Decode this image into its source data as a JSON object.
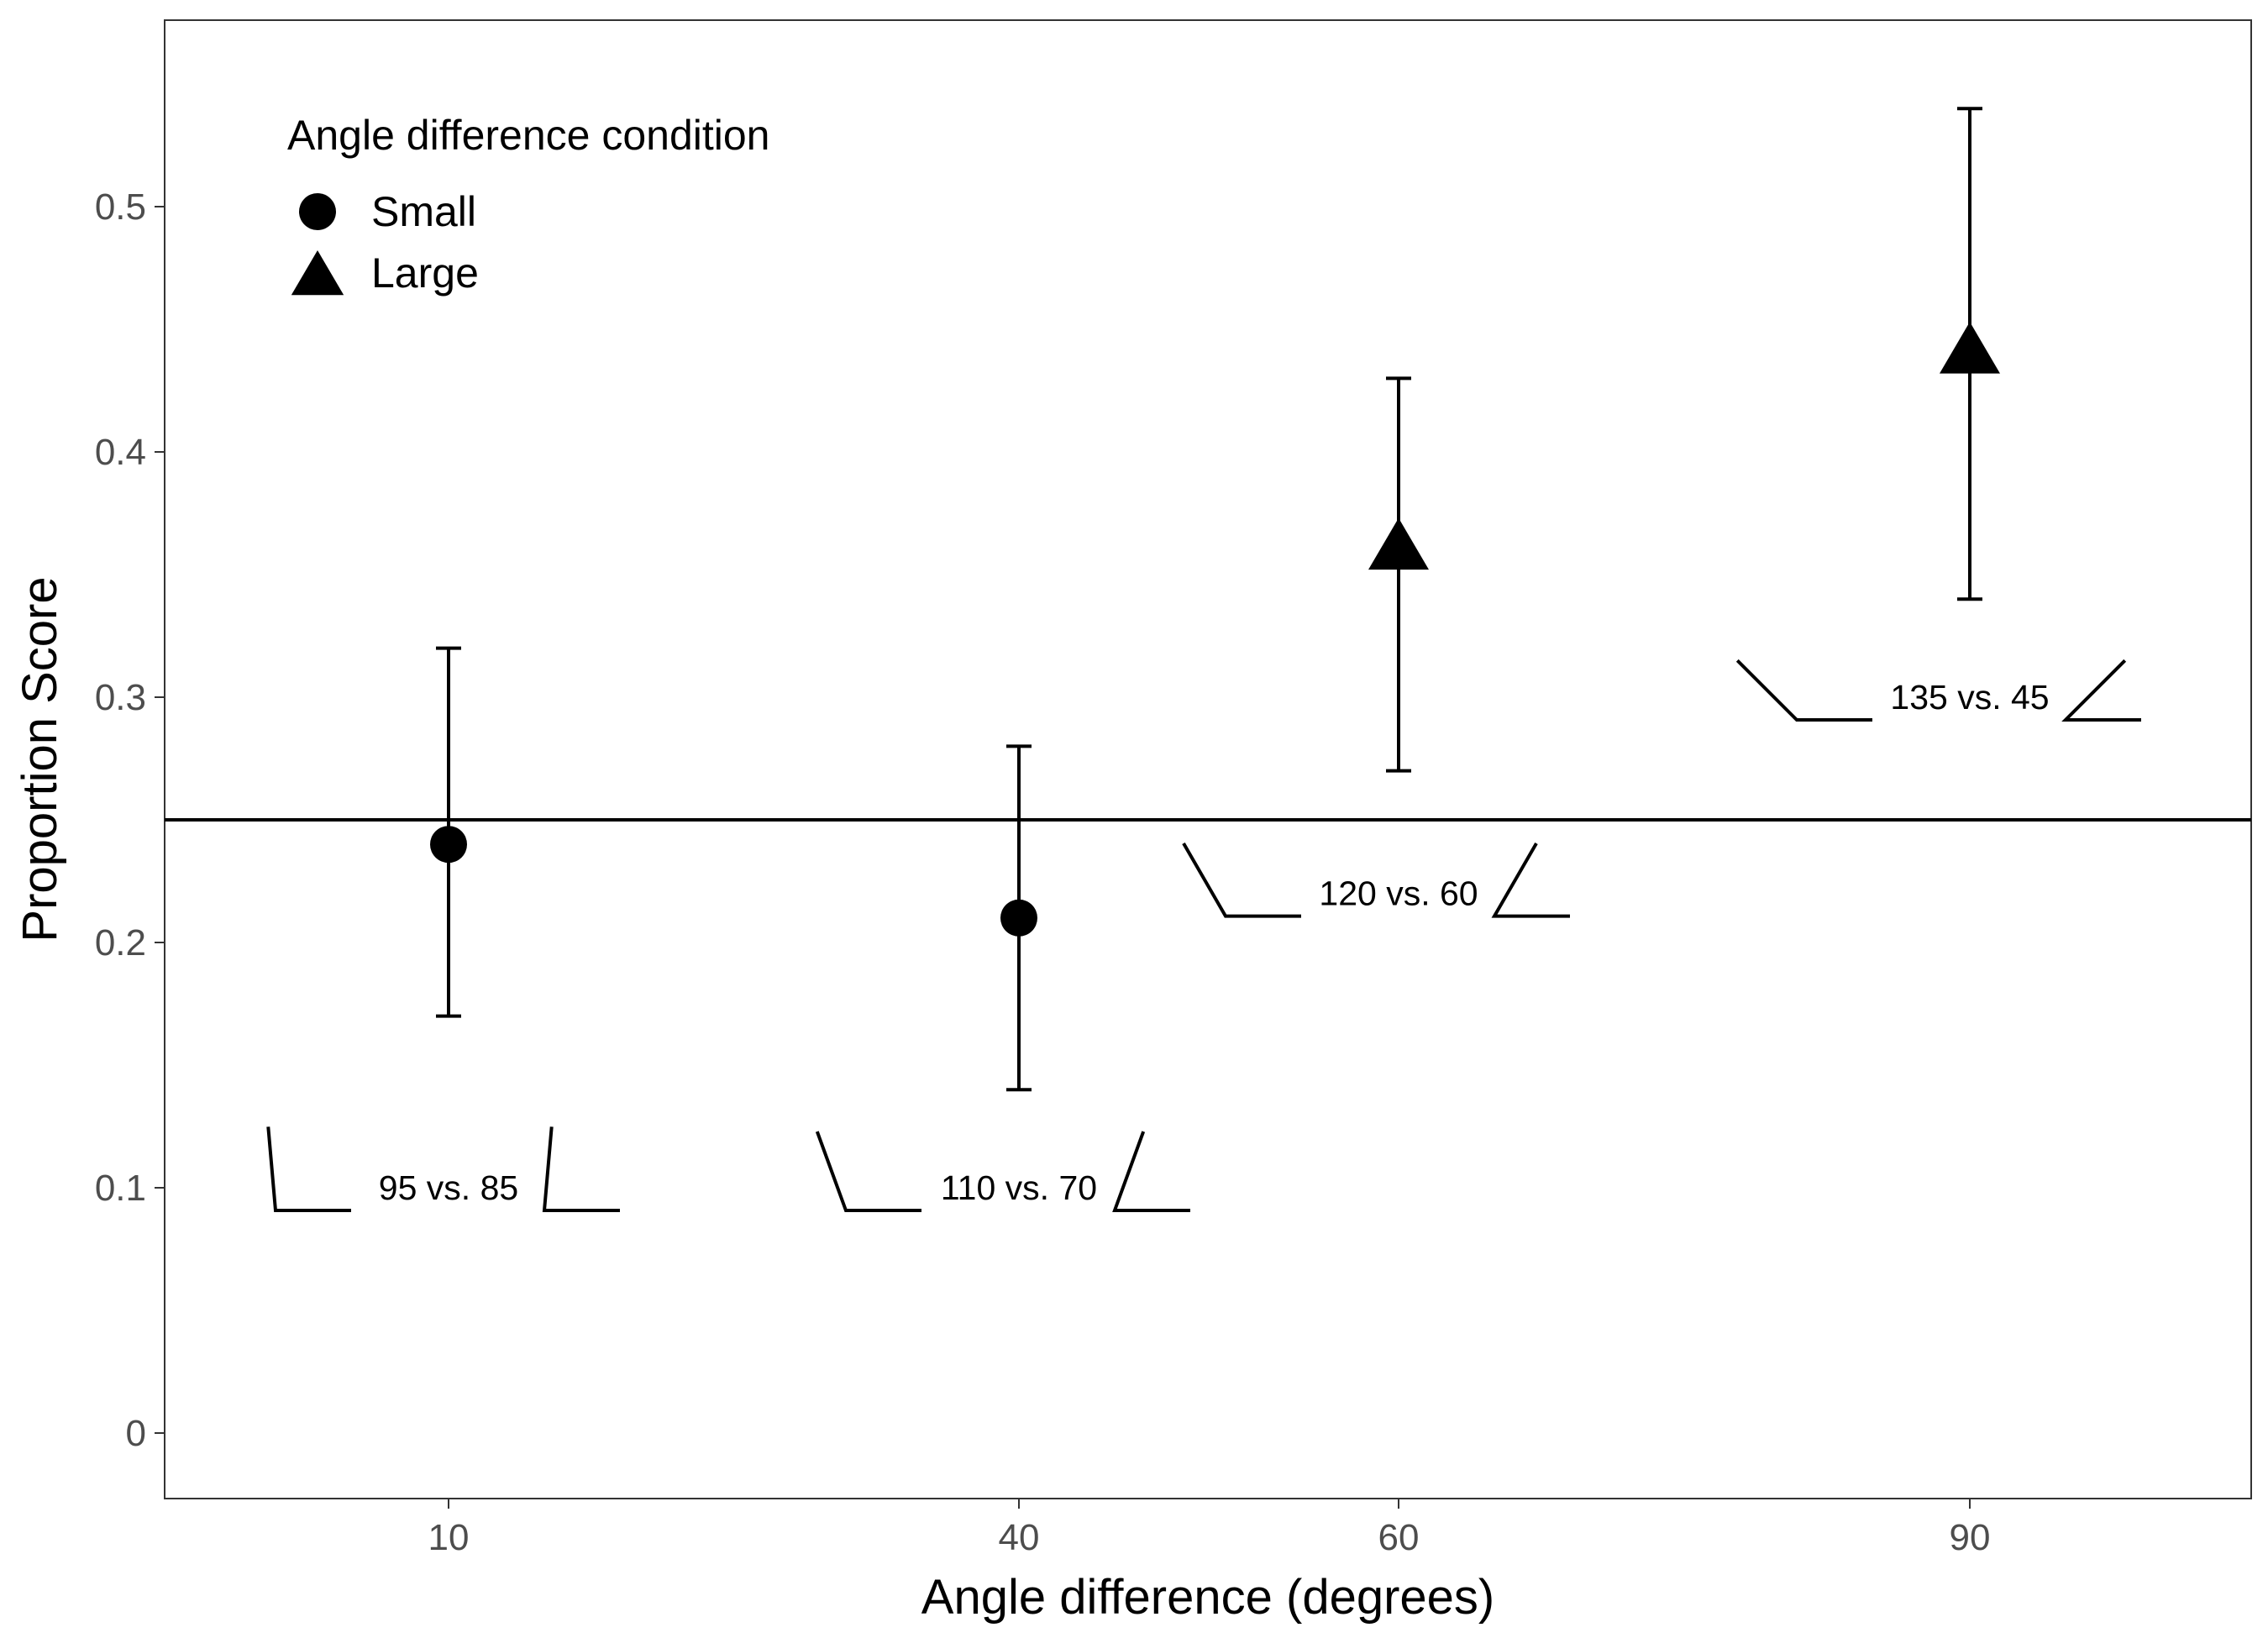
{
  "chart_data": {
    "type": "scatter",
    "title": "",
    "xlabel": "Angle difference (degrees)",
    "ylabel": "Proportion Score",
    "categories": [
      "10",
      "40",
      "60",
      "90"
    ],
    "yticks": [
      "0",
      "0.1",
      "0.2",
      "0.3",
      "0.4",
      "0.5"
    ],
    "ylim": [
      -0.027,
      0.58
    ],
    "grid": false,
    "reference_line": 0.25,
    "legend": {
      "title": "Angle difference condition",
      "placement": "top-left",
      "entries": [
        {
          "label": "Small",
          "shape": "circle"
        },
        {
          "label": "Large",
          "shape": "triangle"
        }
      ]
    },
    "series": [
      {
        "name": "Small",
        "shape": "circle",
        "x": [
          "10",
          "40"
        ],
        "y": [
          0.24,
          0.21
        ],
        "ymin": [
          0.17,
          0.14
        ],
        "ymax": [
          0.32,
          0.28
        ]
      },
      {
        "name": "Large",
        "shape": "triangle",
        "x": [
          "60",
          "90"
        ],
        "y": [
          0.36,
          0.44
        ],
        "ymin": [
          0.27,
          0.34
        ],
        "ymax": [
          0.43,
          0.54
        ]
      }
    ],
    "annotations": [
      {
        "text": "95 vs. 85",
        "category": "10",
        "y": 0.1,
        "left_angle": 95,
        "right_angle": 85
      },
      {
        "text": "110 vs. 70",
        "category": "40",
        "y": 0.1,
        "left_angle": 110,
        "right_angle": 70
      },
      {
        "text": "120 vs. 60",
        "category": "60",
        "y": 0.22,
        "left_angle": 120,
        "right_angle": 60
      },
      {
        "text": "135 vs. 45",
        "category": "90",
        "y": 0.3,
        "left_angle": 135,
        "right_angle": 45
      }
    ],
    "colors": {
      "marks": "#000000",
      "ticks": "#4d4d4d",
      "panel_border": "#333333",
      "background": "#ffffff"
    }
  }
}
